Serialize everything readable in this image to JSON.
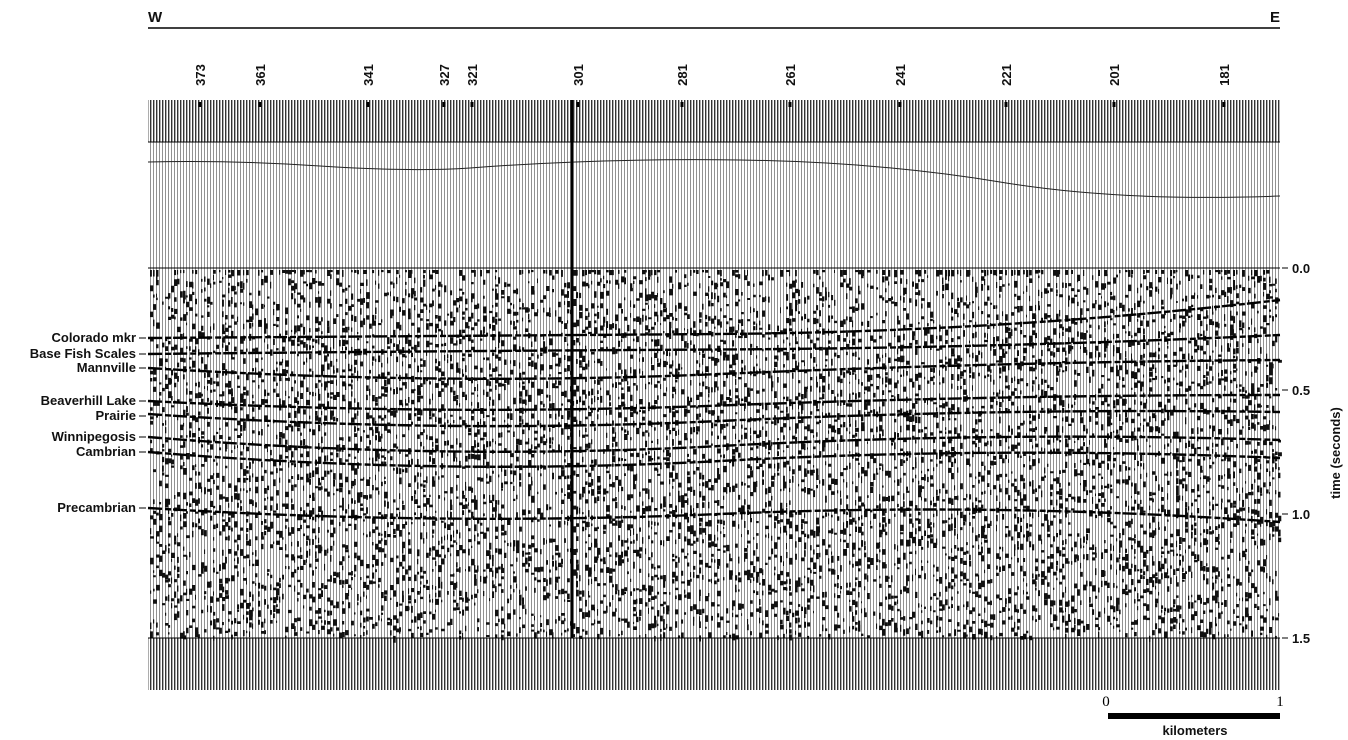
{
  "header": {
    "west": "W",
    "east": "E"
  },
  "shotpoints": [
    "373",
    "361",
    "341",
    "327",
    "321",
    "301",
    "281",
    "261",
    "241",
    "221",
    "201",
    "181"
  ],
  "horizons": [
    "Colorado mkr",
    "Base Fish Scales",
    "Mannville",
    "Beaverhill Lake",
    "Prairie",
    "Winnipegosis",
    "Cambrian",
    "Precambrian"
  ],
  "time_axis": {
    "title": "time (seconds)",
    "ticks": [
      "0.0",
      "0.5",
      "1.0",
      "1.5"
    ]
  },
  "scale_bar": {
    "start": "0",
    "end": "1",
    "unit": "kilometers"
  }
}
